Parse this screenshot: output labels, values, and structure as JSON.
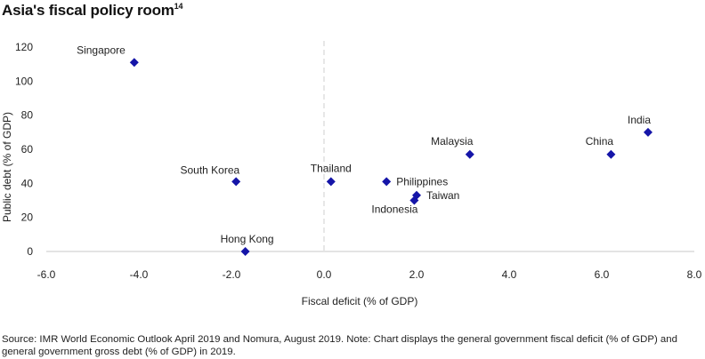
{
  "chart_data": {
    "type": "scatter",
    "title": "Asia's fiscal policy room",
    "title_footnote": "14",
    "xlabel": "Fiscal deficit (% of GDP)",
    "ylabel": "Public debt (% of GDP)",
    "xlim": [
      -6.0,
      8.0
    ],
    "ylim": [
      0,
      120
    ],
    "x_ticks": [
      -6.0,
      -4.0,
      -2.0,
      0.0,
      2.0,
      4.0,
      6.0,
      8.0
    ],
    "x_tick_labels": [
      "-6.0",
      "-4.0",
      "-2.0",
      "0.0",
      "2.0",
      "4.0",
      "6.0",
      "8.0"
    ],
    "y_ticks": [
      0,
      20,
      40,
      60,
      80,
      100,
      120
    ],
    "y_tick_labels": [
      "0",
      "20",
      "40",
      "60",
      "80",
      "100",
      "120"
    ],
    "grid": false,
    "reference_line": {
      "axis": "x",
      "value": 0,
      "style": "dashed"
    },
    "marker": "diamond",
    "marker_color": "#1515a8",
    "points": [
      {
        "label": "Singapore",
        "x": -4.1,
        "y": 111
      },
      {
        "label": "South Korea",
        "x": -1.9,
        "y": 41
      },
      {
        "label": "Hong Kong",
        "x": -1.7,
        "y": 0
      },
      {
        "label": "Thailand",
        "x": 0.15,
        "y": 41
      },
      {
        "label": "Philippines",
        "x": 1.35,
        "y": 41
      },
      {
        "label": "Taiwan",
        "x": 2.0,
        "y": 33
      },
      {
        "label": "Indonesia",
        "x": 1.95,
        "y": 30
      },
      {
        "label": "Malaysia",
        "x": 3.15,
        "y": 57
      },
      {
        "label": "China",
        "x": 6.2,
        "y": 57
      },
      {
        "label": "India",
        "x": 7.0,
        "y": 70
      }
    ]
  },
  "source_note": "Source: IMR World Economic Outlook April 2019 and Nomura, August 2019. Note: Chart displays the general government fiscal deficit (% of GDP) and general government gross debt (% of GDP) in 2019."
}
